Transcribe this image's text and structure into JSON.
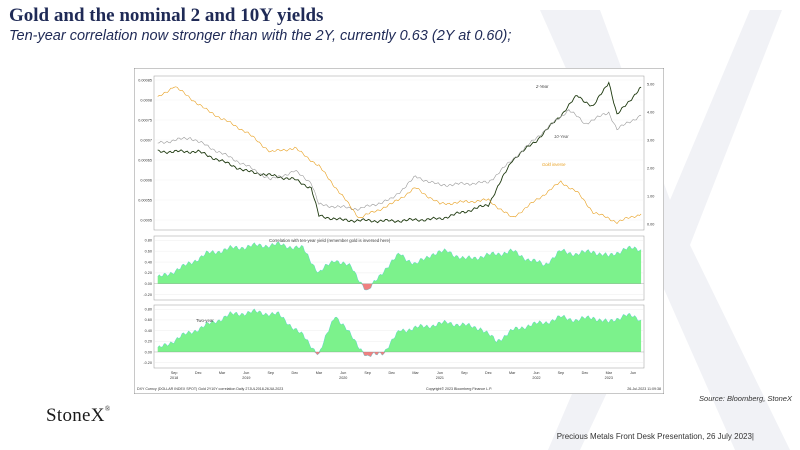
{
  "slide": {
    "title": "Gold and the nominal 2 and 10Y yields",
    "subtitle": "Ten-year correlation now stronger than with the 2Y, currently 0.63 (2Y at 0.60);",
    "source": "Source: Bloomberg, StoneX",
    "logo": "StoneX",
    "footer": "Precious Metals Front Desk Presentation, 26 July 2023|"
  },
  "colors": {
    "two_year": "#1f3a10",
    "ten_year": "#9a9a9a",
    "gold_inverse": "#e8a020",
    "corr_positive": "#7cf28c",
    "corr_negative": "#f08080",
    "corr_edge": "#3fc7d6",
    "title": "#1f2a56"
  },
  "chart_data": [
    {
      "type": "line",
      "panel": "top",
      "x_start": "2018-07",
      "x_end": "2023-07",
      "left_axis": {
        "ticks": [
          "0.00085",
          "0.0008",
          "0.00075",
          "0.0007",
          "0.00065",
          "0.0006",
          "0.00055",
          "0.0005"
        ],
        "ylim": [
          0.000475,
          0.00086
        ]
      },
      "right_axis": {
        "ticks": [
          "5.00",
          "4.00",
          "3.00",
          "2.00",
          "1.00",
          "0.00"
        ],
        "ylim": [
          -0.2,
          5.3
        ]
      },
      "series": [
        {
          "name": "2-Year",
          "axis": "right",
          "x": [
            "2018-07",
            "2018-12",
            "2019-06",
            "2019-12",
            "2020-02",
            "2020-03",
            "2020-06",
            "2020-12",
            "2021-06",
            "2021-12",
            "2022-03",
            "2022-06",
            "2022-09",
            "2022-11",
            "2023-01",
            "2023-03",
            "2023-04",
            "2023-07"
          ],
          "values": [
            2.6,
            2.6,
            1.9,
            1.6,
            1.3,
            0.3,
            0.15,
            0.12,
            0.2,
            0.7,
            2.3,
            3.0,
            3.9,
            4.6,
            4.2,
            5.1,
            3.9,
            4.9
          ]
        },
        {
          "name": "10-Year",
          "axis": "right",
          "x": [
            "2018-07",
            "2018-11",
            "2019-06",
            "2019-09",
            "2019-12",
            "2020-02",
            "2020-03",
            "2020-08",
            "2020-12",
            "2021-03",
            "2021-06",
            "2021-12",
            "2022-03",
            "2022-06",
            "2022-10",
            "2022-12",
            "2023-03",
            "2023-04",
            "2023-07"
          ],
          "values": [
            2.9,
            3.1,
            2.1,
            1.6,
            1.9,
            1.5,
            0.7,
            0.55,
            0.9,
            1.7,
            1.4,
            1.5,
            2.3,
            3.1,
            4.1,
            3.6,
            4.0,
            3.4,
            3.9
          ]
        },
        {
          "name": "Gold inverse",
          "axis": "left",
          "x": [
            "2018-07",
            "2018-09",
            "2019-01",
            "2019-06",
            "2019-09",
            "2019-12",
            "2020-03",
            "2020-08",
            "2020-12",
            "2021-03",
            "2021-06",
            "2021-12",
            "2022-03",
            "2022-06",
            "2022-09",
            "2022-11",
            "2023-01",
            "2023-04",
            "2023-07"
          ],
          "values": [
            0.000805,
            0.000835,
            0.000775,
            0.00072,
            0.00067,
            0.00068,
            0.000635,
            0.000505,
            0.00054,
            0.00058,
            0.00054,
            0.00055,
            0.000505,
            0.00055,
            0.000595,
            0.00057,
            0.00052,
            0.000495,
            0.000515
          ]
        }
      ],
      "annotations": [
        "2-Year",
        "10-Year",
        "Gold inverse"
      ]
    },
    {
      "type": "area",
      "panel": "middle",
      "title": "Correlation with ten-year yield (remember gold is inversed here)",
      "y_ticks": [
        "0.80",
        "0.60",
        "0.40",
        "0.20",
        "0.00",
        "-0.20"
      ],
      "ylim": [
        -0.3,
        0.88
      ],
      "x": [
        "2018-07",
        "2018-10",
        "2019-01",
        "2019-04",
        "2019-07",
        "2019-10",
        "2020-01",
        "2020-03",
        "2020-05",
        "2020-07",
        "2020-09",
        "2020-11",
        "2021-01",
        "2021-03",
        "2021-05",
        "2021-07",
        "2021-09",
        "2021-11",
        "2022-01",
        "2022-03",
        "2022-05",
        "2022-07",
        "2022-09",
        "2022-11",
        "2023-01",
        "2023-03",
        "2023-05",
        "2023-07"
      ],
      "values": [
        0.1,
        0.3,
        0.55,
        0.65,
        0.7,
        0.72,
        0.65,
        0.2,
        0.45,
        0.3,
        -0.15,
        0.25,
        0.55,
        0.35,
        0.55,
        0.6,
        0.45,
        0.5,
        0.55,
        0.6,
        0.45,
        0.35,
        0.6,
        0.55,
        0.6,
        0.5,
        0.65,
        0.63
      ]
    },
    {
      "type": "area",
      "panel": "bottom",
      "title": "Two-year",
      "y_ticks": [
        "0.80",
        "0.60",
        "0.40",
        "0.20",
        "0.00",
        "-0.20"
      ],
      "ylim": [
        -0.3,
        0.88
      ],
      "x": [
        "2018-07",
        "2018-10",
        "2019-01",
        "2019-04",
        "2019-07",
        "2019-10",
        "2020-01",
        "2020-03",
        "2020-05",
        "2020-07",
        "2020-09",
        "2020-11",
        "2021-01",
        "2021-03",
        "2021-05",
        "2021-07",
        "2021-09",
        "2021-11",
        "2022-01",
        "2022-03",
        "2022-05",
        "2022-07",
        "2022-09",
        "2022-11",
        "2023-01",
        "2023-03",
        "2023-05",
        "2023-07"
      ],
      "values": [
        0.05,
        0.3,
        0.5,
        0.7,
        0.75,
        0.7,
        0.3,
        -0.05,
        0.7,
        0.3,
        -0.1,
        0.0,
        0.4,
        0.45,
        0.5,
        0.55,
        0.5,
        0.45,
        0.2,
        0.4,
        0.5,
        0.55,
        0.65,
        0.6,
        0.65,
        0.55,
        0.7,
        0.6
      ]
    }
  ],
  "x_axis": {
    "labels": [
      {
        "m": "Sep",
        "y": "2018"
      },
      {
        "m": "Dec",
        "y": ""
      },
      {
        "m": "Mar",
        "y": ""
      },
      {
        "m": "Jun",
        "y": "2019"
      },
      {
        "m": "Sep",
        "y": ""
      },
      {
        "m": "Dec",
        "y": ""
      },
      {
        "m": "Mar",
        "y": ""
      },
      {
        "m": "Jun",
        "y": "2020"
      },
      {
        "m": "Sep",
        "y": ""
      },
      {
        "m": "Dec",
        "y": ""
      },
      {
        "m": "Mar",
        "y": ""
      },
      {
        "m": "Jun",
        "y": "2021"
      },
      {
        "m": "Sep",
        "y": ""
      },
      {
        "m": "Dec",
        "y": ""
      },
      {
        "m": "Mar",
        "y": ""
      },
      {
        "m": "Jun",
        "y": "2022"
      },
      {
        "m": "Sep",
        "y": ""
      },
      {
        "m": "Dec",
        "y": ""
      },
      {
        "m": "Mar",
        "y": "2023"
      },
      {
        "m": "Jun",
        "y": ""
      }
    ],
    "label_dates": [
      "2018-09",
      "2018-12",
      "2019-03",
      "2019-06",
      "2019-09",
      "2019-12",
      "2020-03",
      "2020-06",
      "2020-09",
      "2020-12",
      "2021-03",
      "2021-06",
      "2021-09",
      "2021-12",
      "2022-03",
      "2022-06",
      "2022-09",
      "2022-12",
      "2023-03",
      "2023-06"
    ]
  },
  "footer_bar": {
    "left": "DXY Curncy (DOLLAR INDEX SPOT) Gold 2Y10Y correlation  Daily 27JUL2018-26JUL2023",
    "center": "Copyright© 2023 Bloomberg Finance L.P.",
    "right": "26-Jul-2023 11:09:38"
  }
}
